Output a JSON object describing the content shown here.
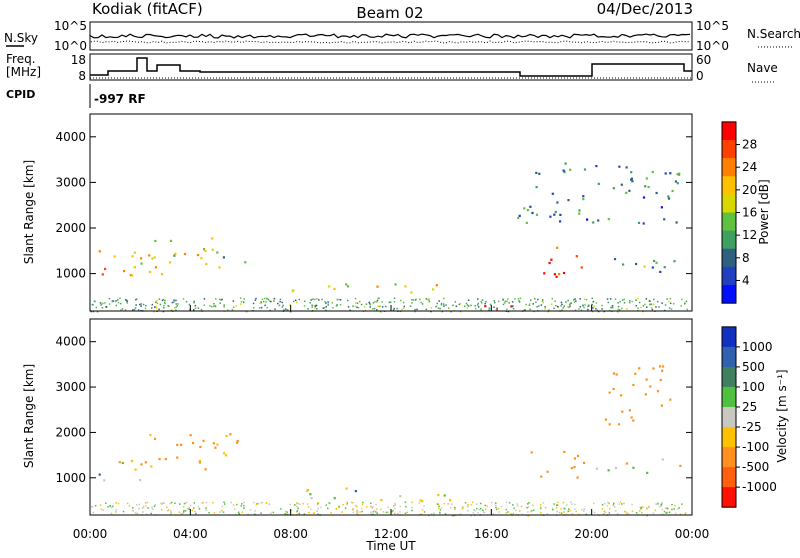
{
  "header": {
    "radar": "Kodiak (fitACF)",
    "beam": "Beam 02",
    "date": "04/Dec/2013"
  },
  "top_panels": {
    "left_label_1": "N.Sky",
    "left_label_2": "Freq.",
    "left_label_2b": "[MHz]",
    "left_label_3": "CPID",
    "noise_left_ticks": [
      "10^5",
      "10^0"
    ],
    "noise_right_ticks": [
      "10^5",
      "10^0"
    ],
    "freq_ticks": [
      "18",
      "8"
    ],
    "nave_ticks": [
      "60",
      "0"
    ],
    "right_label_1": "N.Search",
    "right_label_2": "Nave",
    "cpid_value": "-997 RF"
  },
  "power_panel": {
    "ylabel": "Slant Range [km]",
    "cbar_label": "Power [dB]",
    "cbar_ticks": [
      "28",
      "24",
      "20",
      "16",
      "12",
      "8",
      "4"
    ],
    "cbar_colors": [
      "#ff0000",
      "#ff4000",
      "#ff8000",
      "#ffc000",
      "#d8d800",
      "#60c040",
      "#40a060",
      "#306080",
      "#2040c0",
      "#0010ff"
    ]
  },
  "velocity_panel": {
    "ylabel": "Slant Range [km]",
    "cbar_label": "Velocity [m s⁻¹]",
    "cbar_ticks": [
      "1000",
      "500",
      "100",
      "25",
      "-25",
      "-100",
      "-500",
      "-1000"
    ],
    "cbar_colors": [
      "#1030c0",
      "#3060b0",
      "#408060",
      "#50c040",
      "#c8c8c0",
      "#ffc000",
      "#ff9020",
      "#ff6010",
      "#ff1000"
    ]
  },
  "time_axis": {
    "label": "Time UT",
    "ticks": [
      "00:00",
      "04:00",
      "08:00",
      "12:00",
      "16:00",
      "20:00",
      "00:00"
    ]
  },
  "chart_data": {
    "type": "heatmap",
    "title": "Kodiak (fitACF)",
    "subtitle": "Beam 02",
    "date": "04/Dec/2013",
    "xlabel": "Time UT",
    "ylabel": "Slant Range [km]",
    "xlim_hours": [
      0,
      24
    ],
    "ylim_km": [
      180,
      4500
    ],
    "yticks_km": [
      1000,
      2000,
      3000,
      4000
    ],
    "power_range_db": [
      0,
      30
    ],
    "velocity_range_ms": [
      -1000,
      1000
    ],
    "power_regions": [
      {
        "t0": 0.0,
        "t1": 2.0,
        "r0": 850,
        "r1": 1600,
        "db": 22
      },
      {
        "t0": 2.0,
        "t1": 3.4,
        "r0": 900,
        "r1": 2100,
        "db": 18
      },
      {
        "t0": 3.4,
        "t1": 5.2,
        "r0": 1000,
        "r1": 1800,
        "db": 20
      },
      {
        "t0": 5.2,
        "t1": 6.3,
        "r0": 1100,
        "r1": 1400,
        "db": 12
      },
      {
        "t0": 8.0,
        "t1": 15.0,
        "r0": 580,
        "r1": 820,
        "db": 16
      },
      {
        "t0": 15.5,
        "t1": 17.3,
        "r0": 180,
        "r1": 420,
        "db": 26
      },
      {
        "t0": 17.8,
        "t1": 20.0,
        "r0": 950,
        "r1": 1600,
        "db": 28
      },
      {
        "t0": 20.0,
        "t1": 23.5,
        "r0": 1050,
        "r1": 1450,
        "db": 10
      },
      {
        "t0": 17.0,
        "t1": 23.5,
        "r0": 2100,
        "r1": 3500,
        "db": 8
      }
    ],
    "velocity_regions": [
      {
        "t0": 0.0,
        "t1": 2.0,
        "r0": 850,
        "r1": 1400,
        "v": 0
      },
      {
        "t0": 2.0,
        "t1": 6.3,
        "r0": 1200,
        "r1": 2100,
        "v": -150
      },
      {
        "t0": 8.0,
        "t1": 15.0,
        "r0": 500,
        "r1": 800,
        "v": 0
      },
      {
        "t0": 17.5,
        "t1": 20.0,
        "r0": 1000,
        "r1": 1600,
        "v": -200
      },
      {
        "t0": 20.0,
        "t1": 23.5,
        "r0": 1100,
        "r1": 1450,
        "v": 0
      },
      {
        "t0": 20.5,
        "t1": 23.5,
        "r0": 2200,
        "r1": 3500,
        "v": -300
      }
    ]
  }
}
